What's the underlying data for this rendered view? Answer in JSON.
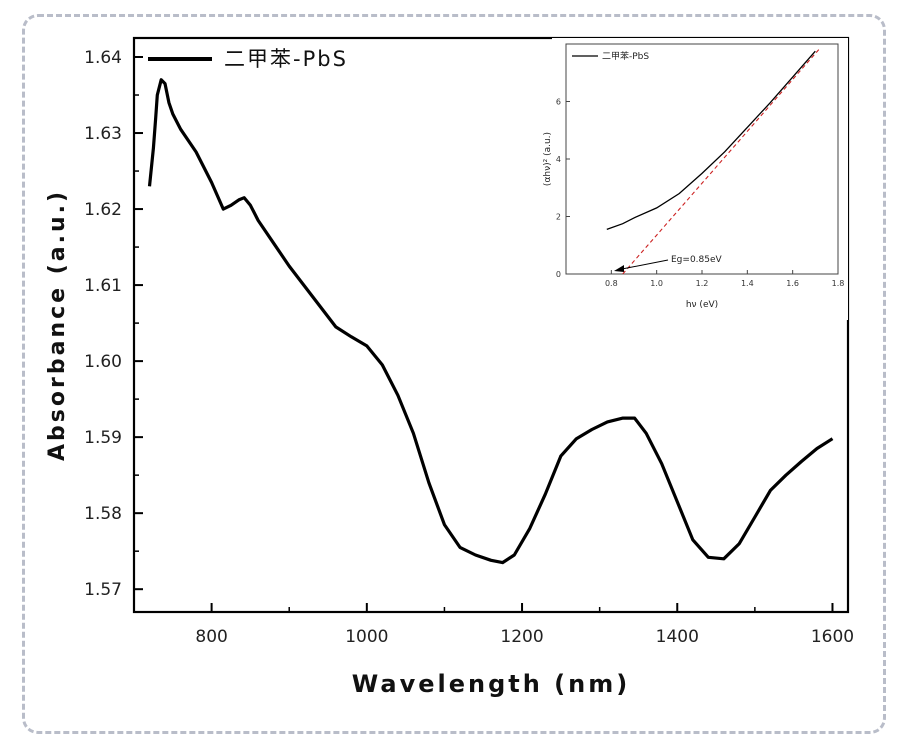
{
  "chart_data": [
    {
      "type": "line",
      "title": "",
      "xlabel": "Wavelength (nm)",
      "ylabel": "Absorbance (a.u.)",
      "xlim": [
        700,
        1620
      ],
      "ylim": [
        1.567,
        1.6425
      ],
      "xticks": [
        800,
        1000,
        1200,
        1400,
        1600
      ],
      "xtick_labels": [
        "800",
        "1000",
        "1200",
        "1400",
        "1600"
      ],
      "yticks": [
        1.57,
        1.58,
        1.59,
        1.6,
        1.61,
        1.62,
        1.63,
        1.64
      ],
      "ytick_labels": [
        "1.57",
        "1.58",
        "1.59",
        "1.60",
        "1.61",
        "1.62",
        "1.63",
        "1.64"
      ],
      "legend_position": "top-left",
      "grid": false,
      "series": [
        {
          "name": "二甲苯-PbS",
          "color": "#000000",
          "x": [
            720,
            725,
            728,
            730,
            735,
            740,
            745,
            750,
            760,
            780,
            800,
            815,
            825,
            835,
            842,
            850,
            860,
            880,
            900,
            930,
            960,
            980,
            1000,
            1020,
            1040,
            1060,
            1080,
            1100,
            1120,
            1140,
            1160,
            1175,
            1190,
            1210,
            1230,
            1250,
            1270,
            1290,
            1310,
            1330,
            1345,
            1360,
            1380,
            1400,
            1420,
            1440,
            1460,
            1480,
            1500,
            1520,
            1540,
            1560,
            1580,
            1600
          ],
          "y": [
            1.623,
            1.628,
            1.632,
            1.635,
            1.637,
            1.6365,
            1.634,
            1.6325,
            1.6305,
            1.6275,
            1.6235,
            1.62,
            1.6205,
            1.6212,
            1.6215,
            1.6205,
            1.6185,
            1.6155,
            1.6125,
            1.6085,
            1.6045,
            1.6032,
            1.602,
            1.5995,
            1.5955,
            1.5905,
            1.584,
            1.5785,
            1.5755,
            1.5745,
            1.5738,
            1.5735,
            1.5745,
            1.578,
            1.5825,
            1.5875,
            1.5898,
            1.591,
            1.592,
            1.5925,
            1.5925,
            1.5905,
            1.5865,
            1.5815,
            1.5765,
            1.5742,
            1.574,
            1.576,
            1.5795,
            1.583,
            1.585,
            1.5868,
            1.5885,
            1.5898
          ]
        }
      ]
    },
    {
      "type": "line",
      "title": "",
      "xlabel": "hν (eV)",
      "ylabel": "(αhν)² (a.u.)",
      "xlim": [
        0.6,
        1.8
      ],
      "ylim": [
        0,
        8
      ],
      "xticks": [
        0.8,
        1.0,
        1.2,
        1.4,
        1.6,
        1.8
      ],
      "xtick_labels": [
        "0.8",
        "1.0",
        "1.2",
        "1.4",
        "1.6",
        "1.8"
      ],
      "yticks": [
        0,
        2,
        4,
        6
      ],
      "ytick_labels": [
        "0",
        "2",
        "4",
        "6"
      ],
      "legend_position": "top-left",
      "annotation": "Eg=0.85eV",
      "series": [
        {
          "name": "二甲苯-PbS",
          "color": "#000000",
          "x": [
            0.78,
            0.85,
            0.9,
            1.0,
            1.1,
            1.2,
            1.3,
            1.4,
            1.5,
            1.6,
            1.7
          ],
          "y": [
            1.55,
            1.75,
            1.95,
            2.3,
            2.8,
            3.5,
            4.25,
            5.1,
            5.95,
            6.85,
            7.75
          ]
        },
        {
          "name": "",
          "color": "#cc2222",
          "style": "dashed",
          "x": [
            0.85,
            1.72
          ],
          "y": [
            0,
            7.85
          ]
        }
      ]
    }
  ]
}
